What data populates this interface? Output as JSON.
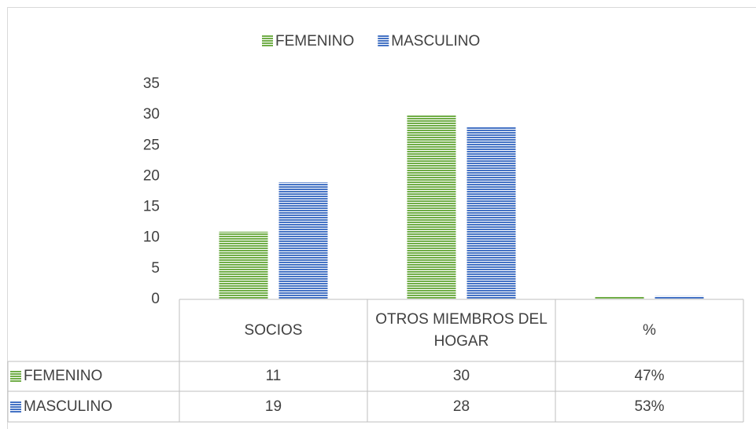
{
  "chart_data": {
    "type": "bar",
    "categories": [
      "SOCIOS",
      "OTROS MIEMBROS DEL HOGAR",
      "%"
    ],
    "series": [
      {
        "name": "FEMENINO",
        "color": "#70ad47",
        "values": [
          11,
          30,
          0.47
        ],
        "value_labels": [
          "11",
          "30",
          "47%"
        ]
      },
      {
        "name": "MASCULINO",
        "color": "#4472c4",
        "values": [
          19,
          28,
          0.53
        ],
        "value_labels": [
          "19",
          "28",
          "53%"
        ]
      }
    ],
    "ylim": [
      0,
      35
    ],
    "yticks": [
      0,
      5,
      10,
      15,
      20,
      25,
      30,
      35
    ],
    "grid": false,
    "legend": "top"
  }
}
